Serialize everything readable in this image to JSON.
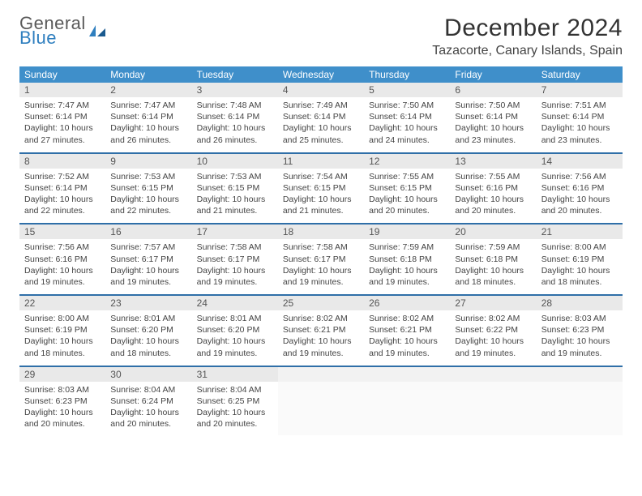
{
  "brand": {
    "line1": "General",
    "line2": "Blue",
    "color1": "#5a5a5a",
    "color2": "#2f7fbf"
  },
  "header": {
    "title": "December 2024",
    "location": "Tazacorte, Canary Islands, Spain"
  },
  "styles": {
    "dow_bg": "#3f8fca",
    "dow_fg": "#ffffff",
    "week_divider": "#2f6fa8",
    "daynum_bg": "#e9e9e9",
    "daynum_fg": "#555555",
    "body_fg": "#444444",
    "page_bg": "#ffffff",
    "title_fontsize": 30,
    "location_fontsize": 16,
    "cell_fontsize": 10.5,
    "dow_fontsize": 12
  },
  "calendar": {
    "dow": [
      "Sunday",
      "Monday",
      "Tuesday",
      "Wednesday",
      "Thursday",
      "Friday",
      "Saturday"
    ],
    "weeks": [
      [
        {
          "n": "1",
          "sr": "7:47 AM",
          "ss": "6:14 PM",
          "dl": "10 hours and 27 minutes."
        },
        {
          "n": "2",
          "sr": "7:47 AM",
          "ss": "6:14 PM",
          "dl": "10 hours and 26 minutes."
        },
        {
          "n": "3",
          "sr": "7:48 AM",
          "ss": "6:14 PM",
          "dl": "10 hours and 26 minutes."
        },
        {
          "n": "4",
          "sr": "7:49 AM",
          "ss": "6:14 PM",
          "dl": "10 hours and 25 minutes."
        },
        {
          "n": "5",
          "sr": "7:50 AM",
          "ss": "6:14 PM",
          "dl": "10 hours and 24 minutes."
        },
        {
          "n": "6",
          "sr": "7:50 AM",
          "ss": "6:14 PM",
          "dl": "10 hours and 23 minutes."
        },
        {
          "n": "7",
          "sr": "7:51 AM",
          "ss": "6:14 PM",
          "dl": "10 hours and 23 minutes."
        }
      ],
      [
        {
          "n": "8",
          "sr": "7:52 AM",
          "ss": "6:14 PM",
          "dl": "10 hours and 22 minutes."
        },
        {
          "n": "9",
          "sr": "7:53 AM",
          "ss": "6:15 PM",
          "dl": "10 hours and 22 minutes."
        },
        {
          "n": "10",
          "sr": "7:53 AM",
          "ss": "6:15 PM",
          "dl": "10 hours and 21 minutes."
        },
        {
          "n": "11",
          "sr": "7:54 AM",
          "ss": "6:15 PM",
          "dl": "10 hours and 21 minutes."
        },
        {
          "n": "12",
          "sr": "7:55 AM",
          "ss": "6:15 PM",
          "dl": "10 hours and 20 minutes."
        },
        {
          "n": "13",
          "sr": "7:55 AM",
          "ss": "6:16 PM",
          "dl": "10 hours and 20 minutes."
        },
        {
          "n": "14",
          "sr": "7:56 AM",
          "ss": "6:16 PM",
          "dl": "10 hours and 20 minutes."
        }
      ],
      [
        {
          "n": "15",
          "sr": "7:56 AM",
          "ss": "6:16 PM",
          "dl": "10 hours and 19 minutes."
        },
        {
          "n": "16",
          "sr": "7:57 AM",
          "ss": "6:17 PM",
          "dl": "10 hours and 19 minutes."
        },
        {
          "n": "17",
          "sr": "7:58 AM",
          "ss": "6:17 PM",
          "dl": "10 hours and 19 minutes."
        },
        {
          "n": "18",
          "sr": "7:58 AM",
          "ss": "6:17 PM",
          "dl": "10 hours and 19 minutes."
        },
        {
          "n": "19",
          "sr": "7:59 AM",
          "ss": "6:18 PM",
          "dl": "10 hours and 19 minutes."
        },
        {
          "n": "20",
          "sr": "7:59 AM",
          "ss": "6:18 PM",
          "dl": "10 hours and 18 minutes."
        },
        {
          "n": "21",
          "sr": "8:00 AM",
          "ss": "6:19 PM",
          "dl": "10 hours and 18 minutes."
        }
      ],
      [
        {
          "n": "22",
          "sr": "8:00 AM",
          "ss": "6:19 PM",
          "dl": "10 hours and 18 minutes."
        },
        {
          "n": "23",
          "sr": "8:01 AM",
          "ss": "6:20 PM",
          "dl": "10 hours and 18 minutes."
        },
        {
          "n": "24",
          "sr": "8:01 AM",
          "ss": "6:20 PM",
          "dl": "10 hours and 19 minutes."
        },
        {
          "n": "25",
          "sr": "8:02 AM",
          "ss": "6:21 PM",
          "dl": "10 hours and 19 minutes."
        },
        {
          "n": "26",
          "sr": "8:02 AM",
          "ss": "6:21 PM",
          "dl": "10 hours and 19 minutes."
        },
        {
          "n": "27",
          "sr": "8:02 AM",
          "ss": "6:22 PM",
          "dl": "10 hours and 19 minutes."
        },
        {
          "n": "28",
          "sr": "8:03 AM",
          "ss": "6:23 PM",
          "dl": "10 hours and 19 minutes."
        }
      ],
      [
        {
          "n": "29",
          "sr": "8:03 AM",
          "ss": "6:23 PM",
          "dl": "10 hours and 20 minutes."
        },
        {
          "n": "30",
          "sr": "8:04 AM",
          "ss": "6:24 PM",
          "dl": "10 hours and 20 minutes."
        },
        {
          "n": "31",
          "sr": "8:04 AM",
          "ss": "6:25 PM",
          "dl": "10 hours and 20 minutes."
        },
        null,
        null,
        null,
        null
      ]
    ]
  }
}
